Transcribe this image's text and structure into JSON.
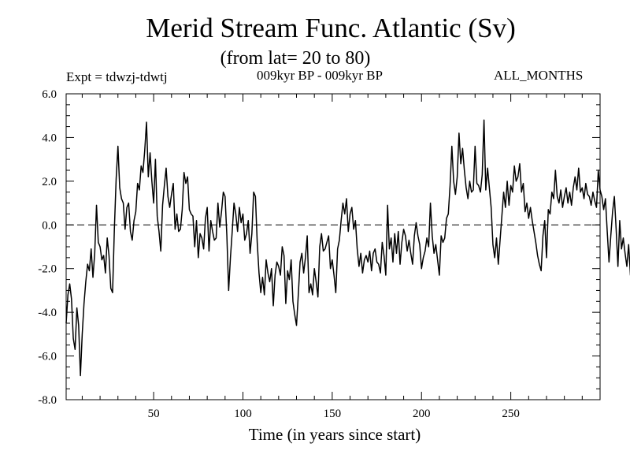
{
  "chart_data": {
    "type": "line",
    "title": "Merid Stream Func. Atlantic (Sv)",
    "subtitle": "(from lat= 20 to 80)",
    "annotations": {
      "left": "Expt = tdwzj-tdwtj",
      "center": "009kyr BP - 009kyr BP",
      "right": "ALL_MONTHS"
    },
    "xlabel": "Time (in years since start)",
    "ylabel": "",
    "xlim": [
      1,
      300
    ],
    "ylim": [
      -8.0,
      6.0
    ],
    "xticks": [
      50,
      100,
      150,
      200,
      250
    ],
    "yticks": [
      "6.0",
      "4.0",
      "2.0",
      "0.0",
      "-2.0",
      "-4.0",
      "-6.0",
      "-8.0"
    ],
    "grid": false,
    "reference_line": {
      "y": 0,
      "style": "dashed"
    },
    "series": [
      {
        "color": "#000000",
        "x_start": 1,
        "x_step": 1,
        "values": [
          -4.5,
          -3.2,
          -2.7,
          -3.4,
          -5.2,
          -5.7,
          -3.8,
          -4.6,
          -6.9,
          -5.0,
          -3.6,
          -2.6,
          -1.8,
          -2.1,
          -1.1,
          -2.4,
          -1.3,
          0.9,
          -0.8,
          -1.0,
          -1.6,
          -1.4,
          -2.2,
          -0.6,
          -1.4,
          -2.9,
          -3.1,
          -0.2,
          2.1,
          3.6,
          1.7,
          1.2,
          1.0,
          -0.2,
          0.8,
          1.0,
          -0.3,
          -0.7,
          0.2,
          0.6,
          1.9,
          1.6,
          2.7,
          2.4,
          3.4,
          4.7,
          2.2,
          3.3,
          2.0,
          1.0,
          3.0,
          0.4,
          -0.3,
          -1.2,
          0.9,
          1.8,
          2.6,
          1.3,
          0.8,
          1.4,
          1.9,
          -0.2,
          0.5,
          -0.3,
          -0.2,
          0.7,
          2.4,
          1.9,
          2.2,
          0.7,
          0.5,
          0.4,
          -1.0,
          0.2,
          -1.5,
          -0.4,
          -0.6,
          -1.1,
          0.3,
          0.8,
          -1.2,
          0.2,
          -0.3,
          -0.7,
          -0.6,
          1.0,
          -0.1,
          0.6,
          1.5,
          1.3,
          -0.5,
          -3.0,
          -1.5,
          -0.3,
          1.0,
          0.5,
          -0.3,
          0.8,
          0.1,
          0.5,
          -0.7,
          -0.4,
          0.2,
          -1.3,
          -0.4,
          1.5,
          1.3,
          -0.8,
          -2.2,
          -3.1,
          -2.4,
          -3.2,
          -1.6,
          -2.2,
          -2.6,
          -2.0,
          -3.7,
          -2.3,
          -1.7,
          -1.9,
          -2.3,
          -1.0,
          -1.4,
          -3.6,
          -2.1,
          -2.5,
          -1.6,
          -3.5,
          -4.1,
          -4.6,
          -3.2,
          -1.7,
          -1.3,
          -2.2,
          -1.5,
          -0.5,
          -3.1,
          -2.7,
          -3.2,
          -2.0,
          -2.6,
          -3.3,
          -1.0,
          -0.4,
          -1.2,
          -1.1,
          -0.8,
          -0.5,
          -2.0,
          -1.6,
          -2.3,
          -3.1,
          -1.1,
          -0.7,
          0.2,
          1.0,
          0.5,
          1.2,
          -0.3,
          0.5,
          0.8,
          -0.2,
          0.2,
          -1.1,
          -1.9,
          -1.3,
          -2.2,
          -1.6,
          -1.4,
          -1.7,
          -1.2,
          -2.1,
          -1.3,
          -1.1,
          -1.7,
          -1.8,
          -2.2,
          -0.8,
          -1.4,
          -2.3,
          0.9,
          -1.1,
          -0.6,
          -1.7,
          -0.4,
          -1.3,
          -0.3,
          -1.8,
          -0.8,
          -0.2,
          -0.5,
          -1.2,
          -0.7,
          -1.3,
          -1.8,
          -0.5,
          0.1,
          -0.5,
          -0.9,
          -2.0,
          -1.5,
          -1.2,
          -0.6,
          -1.0,
          1.0,
          -0.5,
          -1.3,
          -0.9,
          -1.6,
          -2.3,
          -0.5,
          -0.8,
          -0.6,
          0.3,
          0.5,
          1.8,
          3.6,
          2.0,
          1.4,
          2.2,
          4.2,
          2.8,
          3.5,
          2.5,
          1.7,
          1.2,
          2.0,
          1.5,
          1.6,
          3.6,
          1.9,
          1.8,
          1.5,
          2.3,
          4.8,
          1.6,
          2.6,
          1.7,
          0.8,
          -0.9,
          -1.5,
          -0.6,
          -1.8,
          -0.7,
          0.4,
          1.5,
          0.8,
          2.0,
          0.9,
          1.8,
          1.5,
          2.7,
          2.0,
          2.2,
          2.8,
          1.5,
          1.9,
          0.6,
          1.0,
          0.3,
          0.8,
          0.2,
          -0.3,
          -0.8,
          -1.4,
          -1.8,
          -2.1,
          -0.5,
          0.2,
          -1.5,
          0.7,
          0.5,
          1.5,
          1.2,
          2.5,
          1.3,
          1.0,
          1.6,
          0.8,
          1.3,
          1.7,
          1.0,
          1.5,
          0.9,
          1.7,
          2.2,
          1.6,
          2.6,
          1.5,
          1.7,
          1.2,
          1.9,
          1.4,
          1.3,
          0.9,
          1.5,
          1.1,
          0.8,
          2.5,
          1.6,
          1.3,
          0.7,
          1.2,
          -0.3,
          -1.7,
          -0.5,
          0.6,
          1.3,
          -0.2,
          -1.9,
          0.2,
          -1.1,
          -0.6,
          -1.3,
          -1.9,
          -0.9,
          -2.3,
          -1.0,
          -1.3,
          -0.9,
          -1.6,
          -1.2,
          -1.8,
          -2.8,
          -1.2,
          -1.5,
          -0.8,
          0.4,
          1.3,
          1.6,
          0.2,
          -0.6,
          0.8,
          1.2,
          1.5,
          1.5,
          1.1,
          1.8,
          1.1,
          1.3,
          0.4,
          -0.3,
          0.7,
          -0.2,
          -0.8,
          0.9,
          1.3,
          0.3,
          -0.4,
          -1.6,
          -1.3,
          -2.1,
          -0.7,
          -0.3,
          0.6,
          0.3,
          -0.6,
          1.3,
          2.7,
          2.9,
          1.4,
          1.6,
          0.9,
          1.1,
          0.8,
          0.2,
          1.6,
          2.9,
          1.2,
          0.2,
          -0.7,
          0.2,
          0.8,
          1.5,
          1.1,
          0.6,
          0.9,
          -0.3,
          -1.3,
          -0.8,
          -1.6,
          -1.4,
          -1.4,
          -0.2,
          0.9,
          1.5,
          2.8,
          2.4,
          2.5,
          2.5,
          1.2,
          0.5,
          1.3,
          2.5,
          1.0,
          2.3,
          3.9,
          2.7,
          3.2,
          0.6,
          1.3,
          1.5,
          1.6,
          1.1,
          1.2,
          1.3,
          0.2,
          -0.3,
          -1.4,
          -1.2,
          -2.0,
          -0.9,
          0.5,
          1.7,
          2.5,
          1.6,
          2.1,
          2.1,
          3.2,
          2.1,
          2.1,
          3.3,
          2.3,
          1.7,
          1.9,
          1.5,
          0.6,
          1.4,
          0.6,
          1.0,
          1.0,
          0.3,
          0.8,
          1.4,
          3.3,
          1.7,
          2.7,
          1.0,
          1.8,
          0.5,
          -0.8,
          -0.6,
          0.3,
          0.9,
          0.2,
          -0.2,
          -0.7,
          -0.6,
          1.2,
          1.7,
          1.2,
          1.7,
          2.0,
          2.5,
          2.7,
          1.7,
          2.0,
          1.4,
          1.2,
          1.0,
          0.5,
          1.2,
          0.8,
          -0.2,
          -0.8,
          -0.2,
          0.5,
          0.7,
          0.8,
          -0.5,
          0.5,
          1.1,
          -0.5,
          -0.2,
          -0.6,
          -1.1,
          0.0,
          0.6,
          1.5,
          2.4,
          2.0,
          2.0,
          1.6,
          1.8,
          1.0,
          0.4,
          -0.3,
          0.2,
          0.8,
          1.2,
          1.6,
          1.9,
          2.2,
          2.1,
          0.5,
          0.7,
          0.3,
          0.1,
          -0.8,
          -0.4,
          1.3,
          1.7,
          1.7,
          2.3,
          1.5,
          -0.1,
          -0.6,
          0.0,
          1.2,
          2.5,
          3.3,
          2.5,
          2.0,
          1.2,
          0.6,
          0.3,
          0.9,
          1.8,
          2.4,
          2.6,
          1.1,
          0.5,
          0.2,
          -0.5,
          -0.3,
          0.2,
          0.9,
          0.5,
          0.7,
          1.3,
          1.8,
          2.7,
          2.1,
          1.3,
          0.3,
          0.8,
          1.3,
          0.8,
          -0.6,
          0.6,
          0.2,
          -0.6,
          -0.9,
          -0.1,
          0.3,
          1.1,
          1.2,
          1.8,
          3.1,
          2.4,
          2.2,
          2.7,
          1.8,
          1.9,
          0.7,
          -0.4,
          0.8,
          2.3,
          2.0,
          0.8,
          0.5,
          0.3,
          -0.6,
          -0.2,
          0.5,
          0.9,
          0.2,
          -0.4,
          0.1,
          1.5,
          1.2,
          3.0,
          2.7,
          3.4,
          1.4,
          0.7,
          1.9,
          2.0,
          2.5,
          1.8,
          2.9,
          3.2,
          3.4,
          2.3,
          1.5,
          2.3,
          2.0,
          2.8,
          3.2,
          2.6,
          1.7,
          1.9,
          2.0,
          1.9,
          2.0,
          1.2,
          1.0,
          1.3,
          1.0,
          0.7,
          0.4,
          0.1,
          0.8,
          0.7,
          0.0,
          -0.2,
          -0.4,
          -0.6
        ]
      }
    ]
  }
}
